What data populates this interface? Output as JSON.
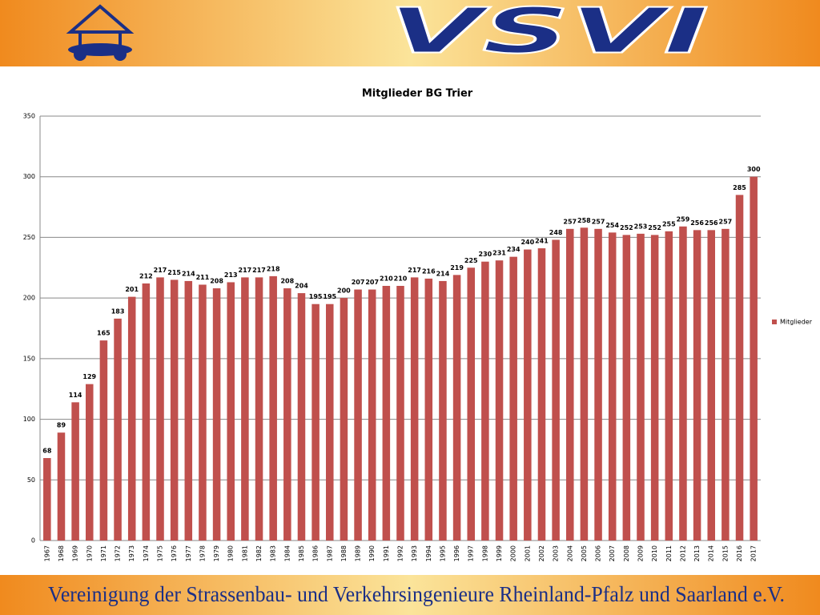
{
  "header": {
    "brand": "VSVI"
  },
  "footer": {
    "text": "Vereinigung der Strassenbau- und Verkehrsingenieure Rheinland-Pfalz und Saarland e.V."
  },
  "chart_data": {
    "type": "bar",
    "title": "Mitglieder BG Trier",
    "categories": [
      "1967",
      "1968",
      "1969",
      "1970",
      "1971",
      "1972",
      "1973",
      "1974",
      "1975",
      "1976",
      "1977",
      "1978",
      "1979",
      "1980",
      "1981",
      "1982",
      "1983",
      "1984",
      "1985",
      "1986",
      "1987",
      "1988",
      "1989",
      "1990",
      "1991",
      "1992",
      "1993",
      "1994",
      "1995",
      "1996",
      "1997",
      "1998",
      "1999",
      "2000",
      "2001",
      "2002",
      "2003",
      "2004",
      "2005",
      "2006",
      "2007",
      "2008",
      "2009",
      "2010",
      "2011",
      "2012",
      "2013",
      "2014",
      "2015",
      "2016",
      "2017"
    ],
    "series": [
      {
        "name": "Mitglieder",
        "color": "#c0504d",
        "values": [
          68,
          89,
          114,
          129,
          165,
          183,
          201,
          212,
          217,
          215,
          214,
          211,
          208,
          213,
          217,
          217,
          218,
          208,
          204,
          195,
          195,
          200,
          207,
          207,
          210,
          210,
          217,
          216,
          214,
          219,
          225,
          230,
          231,
          234,
          240,
          241,
          248,
          257,
          258,
          257,
          254,
          252,
          253,
          252,
          255,
          259,
          256,
          256,
          257,
          285,
          300
        ]
      }
    ],
    "ylim": [
      0,
      350
    ],
    "yticks": [
      0,
      50,
      100,
      150,
      200,
      250,
      300,
      350
    ],
    "grid": true,
    "legend": "right"
  }
}
